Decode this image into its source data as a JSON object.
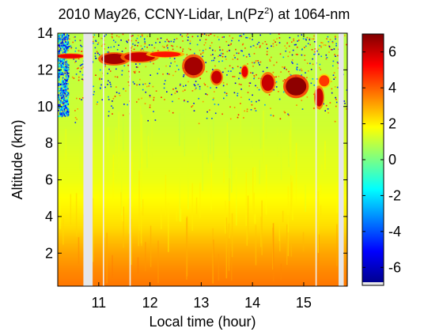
{
  "chart_data": {
    "type": "heatmap",
    "title_main": "2010 May26, CCNY-Lidar, Ln(Pz",
    "title_sup": "2",
    "title_end": ") at 1064-nm",
    "xlabel": "Local time (hour)",
    "ylabel": "Altitude (km)",
    "xlim": [
      10.2,
      15.85
    ],
    "ylim": [
      0.2,
      14
    ],
    "xticks": [
      11,
      12,
      13,
      14,
      15
    ],
    "yticks": [
      2,
      4,
      6,
      8,
      10,
      12,
      14
    ],
    "colorbar": {
      "range": [
        -7,
        7
      ],
      "ticks": [
        6,
        4,
        2,
        0,
        -2,
        -4,
        -6
      ],
      "colormap": "jet"
    },
    "data_gaps_hours": [
      [
        10.7,
        10.88
      ],
      [
        15.68,
        15.78
      ]
    ],
    "thin_gaps_hours": [
      11.08,
      11.6,
      15.23
    ],
    "background_profile": [
      {
        "altitude_km": 0.3,
        "value": 3.6
      },
      {
        "altitude_km": 1.0,
        "value": 3.4
      },
      {
        "altitude_km": 2.0,
        "value": 3.0
      },
      {
        "altitude_km": 2.8,
        "value": 2.6
      },
      {
        "altitude_km": 3.5,
        "value": 2.2
      },
      {
        "altitude_km": 4.5,
        "value": 1.9
      },
      {
        "altitude_km": 6.0,
        "value": 1.5
      },
      {
        "altitude_km": 9.0,
        "value": 1.1
      },
      {
        "altitude_km": 12.0,
        "value": 0.9
      },
      {
        "altitude_km": 14.0,
        "value": 0.8
      }
    ],
    "cloud_features": [
      {
        "t": 10.45,
        "alt_km": 12.75,
        "dt": 0.25,
        "dz": 0.12,
        "value": 5.5
      },
      {
        "t": 11.3,
        "alt_km": 12.6,
        "dt": 0.25,
        "dz": 0.28,
        "value": 6.5
      },
      {
        "t": 11.8,
        "alt_km": 12.7,
        "dt": 0.3,
        "dz": 0.25,
        "value": 6.0
      },
      {
        "t": 12.3,
        "alt_km": 12.85,
        "dt": 0.3,
        "dz": 0.15,
        "value": 5.0
      },
      {
        "t": 12.85,
        "alt_km": 12.2,
        "dt": 0.18,
        "dz": 0.5,
        "value": 6.5
      },
      {
        "t": 13.3,
        "alt_km": 11.6,
        "dt": 0.1,
        "dz": 0.35,
        "value": 6.0
      },
      {
        "t": 13.85,
        "alt_km": 11.9,
        "dt": 0.06,
        "dz": 0.3,
        "value": 5.5
      },
      {
        "t": 14.3,
        "alt_km": 11.3,
        "dt": 0.12,
        "dz": 0.45,
        "value": 6.0
      },
      {
        "t": 14.85,
        "alt_km": 11.1,
        "dt": 0.2,
        "dz": 0.5,
        "value": 6.8
      },
      {
        "t": 15.3,
        "alt_km": 10.5,
        "dt": 0.08,
        "dz": 0.5,
        "value": 6.0
      },
      {
        "t": 15.4,
        "alt_km": 11.4,
        "dt": 0.1,
        "dz": 0.3,
        "value": 4.5
      }
    ]
  }
}
